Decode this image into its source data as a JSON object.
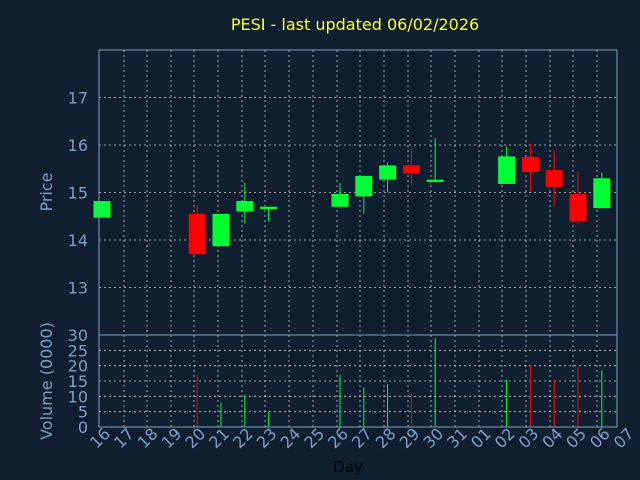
{
  "chart_data": {
    "type": "candlestick",
    "title": "PESI - last updated 06/02/2026",
    "xlabel": "Day",
    "price_panel": {
      "ylabel": "Price",
      "ylim": [
        12.0,
        18.0
      ],
      "yticks": [
        "13",
        "14",
        "15",
        "16",
        "17"
      ],
      "grid": true
    },
    "volume_panel": {
      "ylabel": "Volume (0000)",
      "ylim": [
        0,
        30
      ],
      "yticks": [
        "0",
        "5",
        "10",
        "15",
        "20",
        "25",
        "30"
      ],
      "grid": true
    },
    "x_tick_labels": [
      "16",
      "17",
      "18",
      "19",
      "20",
      "21",
      "22",
      "23",
      "24",
      "25",
      "26",
      "27",
      "28",
      "29",
      "30",
      "31",
      "01",
      "02",
      "03",
      "04",
      "05",
      "06",
      "07"
    ],
    "candles": [
      {
        "day": "16",
        "open": 14.47,
        "close": 14.82,
        "high": 14.82,
        "low": 14.47,
        "volume": null
      },
      {
        "day": "20",
        "open": 14.55,
        "close": 13.7,
        "high": 14.72,
        "low": 13.7,
        "volume": 17
      },
      {
        "day": "21",
        "open": 13.87,
        "close": 14.55,
        "high": 14.55,
        "low": 13.87,
        "volume": 8
      },
      {
        "day": "22",
        "open": 14.6,
        "close": 14.82,
        "high": 15.2,
        "low": 14.35,
        "volume": 10.5
      },
      {
        "day": "23",
        "open": 14.65,
        "close": 14.7,
        "high": 14.7,
        "low": 14.4,
        "volume": 5
      },
      {
        "day": "26",
        "open": 14.7,
        "close": 14.97,
        "high": 15.2,
        "low": 14.7,
        "volume": 17
      },
      {
        "day": "27",
        "open": 14.92,
        "close": 15.35,
        "high": 15.35,
        "low": 14.55,
        "volume": 13
      },
      {
        "day": "28",
        "open": 15.27,
        "close": 15.57,
        "high": 15.63,
        "low": 15.0,
        "volume": 14
      },
      {
        "day": "29",
        "open": 15.57,
        "close": 15.4,
        "high": 15.95,
        "low": 15.15,
        "volume": 11
      },
      {
        "day": "30",
        "open": 15.22,
        "close": 15.27,
        "high": 16.15,
        "low": 15.22,
        "volume": 29
      },
      {
        "day": "02",
        "open": 15.18,
        "close": 15.76,
        "high": 15.97,
        "low": 15.18,
        "volume": 15.5
      },
      {
        "day": "03",
        "open": 15.75,
        "close": 15.43,
        "high": 16.03,
        "low": 15.03,
        "volume": 20
      },
      {
        "day": "04",
        "open": 15.47,
        "close": 15.12,
        "high": 15.88,
        "low": 14.72,
        "volume": 15.5
      },
      {
        "day": "05",
        "open": 14.97,
        "close": 14.4,
        "high": 15.45,
        "low": 14.33,
        "volume": 19.5
      },
      {
        "day": "06",
        "open": 14.67,
        "close": 15.3,
        "high": 15.42,
        "low": 14.67,
        "volume": 18.5
      }
    ],
    "colors": {
      "background": "#0f1f30",
      "up": "#00ff33",
      "down": "#ff0000",
      "axis": "#7f9fcc",
      "grid": "#c8c8c8",
      "title": "#ffff33",
      "xlabel": "#000000"
    }
  }
}
